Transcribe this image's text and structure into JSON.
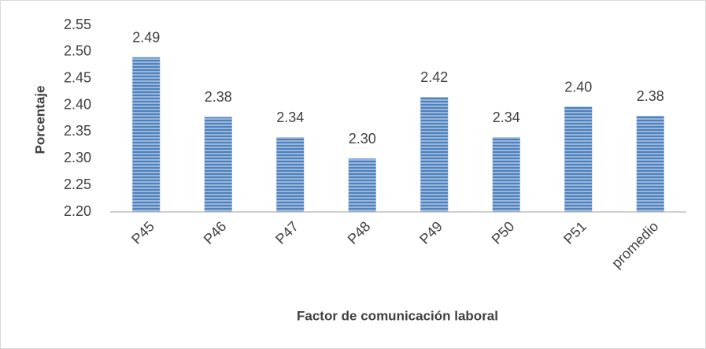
{
  "chart_data": {
    "type": "bar",
    "x_label": "Factor de comunicación laboral",
    "y_label": "Porcentaje",
    "categories": [
      "P45",
      "P46",
      "P47",
      "P48",
      "P49",
      "P50",
      "P51",
      "promedio"
    ],
    "values": [
      2.49,
      2.378,
      2.34,
      2.3,
      2.415,
      2.34,
      2.397,
      2.38
    ],
    "value_labels": [
      "2.49",
      "2.38",
      "2.34",
      "2.30",
      "2.42",
      "2.34",
      "2.40",
      "2.38"
    ],
    "color": "#4f81bd",
    "ylim": [
      2.2,
      2.55
    ],
    "yticks": [
      {
        "value": 2.2,
        "label": "2.20"
      },
      2.25,
      {
        "value": 2.3,
        "label": "2.30"
      },
      2.35,
      {
        "value": 2.4,
        "label": "2.40"
      },
      2.45,
      {
        "value": 2.5,
        "label": "2.50"
      },
      2.55
    ],
    "grid": false
  }
}
